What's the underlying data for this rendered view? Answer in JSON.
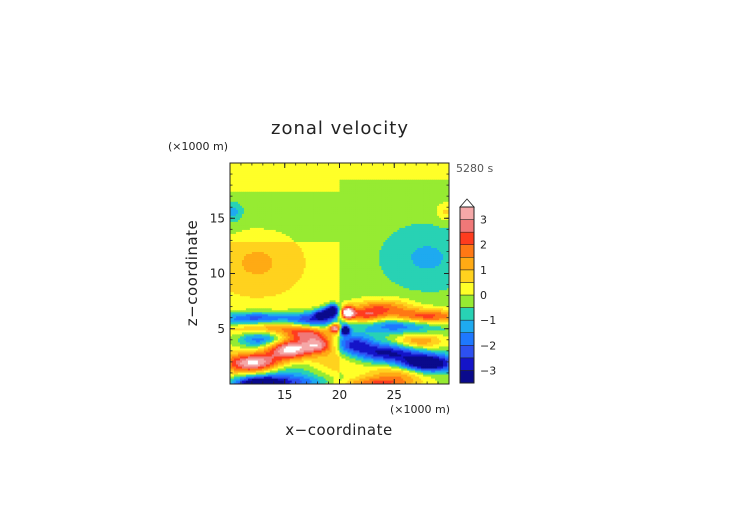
{
  "chart_data": {
    "type": "heatmap",
    "title": "zonal velocity",
    "time_label": "5280 s",
    "xlabel": "x−coordinate",
    "ylabel": "z−coordinate",
    "x_unit": "(×1000 m)",
    "y_unit": "(×1000 m)",
    "xlim": [
      10,
      30
    ],
    "ylim": [
      0,
      20
    ],
    "x_ticks": [
      {
        "value": 15,
        "label": "15"
      },
      {
        "value": 20,
        "label": "20"
      },
      {
        "value": 25,
        "label": "25"
      }
    ],
    "y_ticks": [
      {
        "value": 5,
        "label": "5"
      },
      {
        "value": 10,
        "label": "10"
      },
      {
        "value": 15,
        "label": "15"
      }
    ],
    "colorbar": {
      "vmin": -3.5,
      "vmax": 3.5,
      "extend": "max",
      "ticks": [
        {
          "value": 3,
          "label": "3"
        },
        {
          "value": 2,
          "label": "2"
        },
        {
          "value": 1,
          "label": "1"
        },
        {
          "value": 0,
          "label": "0"
        },
        {
          "value": -1,
          "label": "−1"
        },
        {
          "value": -2,
          "label": "−2"
        },
        {
          "value": -3,
          "label": "−3"
        }
      ],
      "levels": [
        {
          "lo": -3.5,
          "hi": -3.0,
          "color": "#0a0a8c"
        },
        {
          "lo": -3.0,
          "hi": -2.5,
          "color": "#1414c8"
        },
        {
          "lo": -2.5,
          "hi": -2.0,
          "color": "#2d50f0"
        },
        {
          "lo": -2.0,
          "hi": -1.5,
          "color": "#1e78ff"
        },
        {
          "lo": -1.5,
          "hi": -1.0,
          "color": "#1eaaf0"
        },
        {
          "lo": -1.0,
          "hi": -0.5,
          "color": "#28d2b4"
        },
        {
          "lo": -0.5,
          "hi": 0.0,
          "color": "#96eb32"
        },
        {
          "lo": 0.0,
          "hi": 0.5,
          "color": "#ffff28"
        },
        {
          "lo": 0.5,
          "hi": 1.0,
          "color": "#ffd21e"
        },
        {
          "lo": 1.0,
          "hi": 1.5,
          "color": "#ffaa14"
        },
        {
          "lo": 1.5,
          "hi": 2.0,
          "color": "#ff7814"
        },
        {
          "lo": 2.0,
          "hi": 2.5,
          "color": "#ff3c1e"
        },
        {
          "lo": 2.5,
          "hi": 3.0,
          "color": "#f07878"
        },
        {
          "lo": 3.0,
          "hi": 3.5,
          "color": "#f5a8a8"
        }
      ],
      "over_color": "#ffffff"
    },
    "field_features": [
      {
        "x": 12.6,
        "z": 0.1,
        "sx": 1.6,
        "sz": 0.45,
        "amp": -4.2
      },
      {
        "x": 12.3,
        "z": 1.9,
        "sx": 1.8,
        "sz": 0.6,
        "amp": 4.0
      },
      {
        "x": 14.5,
        "z": 1.3,
        "sx": 2.2,
        "sz": 0.7,
        "amp": -1.6
      },
      {
        "x": 15.4,
        "z": 3.2,
        "sx": 1.4,
        "sz": 0.6,
        "amp": 3.6
      },
      {
        "x": 12.8,
        "z": 4.1,
        "sx": 1.5,
        "sz": 0.55,
        "amp": -2.2
      },
      {
        "x": 13.8,
        "z": 5.3,
        "sx": 2.6,
        "sz": 0.5,
        "amp": 2.0
      },
      {
        "x": 12.5,
        "z": 5.9,
        "sx": 2.5,
        "sz": 0.45,
        "amp": -3.1
      },
      {
        "x": 17.6,
        "z": 5.8,
        "sx": 1.6,
        "sz": 0.5,
        "amp": -2.7
      },
      {
        "x": 17.0,
        "z": 4.6,
        "sx": 1.3,
        "sz": 0.45,
        "amp": 2.1
      },
      {
        "x": 18.1,
        "z": 3.6,
        "sx": 1.0,
        "sz": 0.5,
        "amp": 2.6
      },
      {
        "x": 18.4,
        "z": 6.4,
        "sx": 0.55,
        "sz": 0.35,
        "amp": -2.4
      },
      {
        "x": 19.4,
        "z": 6.7,
        "sx": 0.45,
        "sz": 0.38,
        "amp": -4.6
      },
      {
        "x": 19.6,
        "z": 5.1,
        "sx": 0.35,
        "sz": 0.28,
        "amp": 3.7
      },
      {
        "x": 20.5,
        "z": 4.9,
        "sx": 0.3,
        "sz": 0.28,
        "amp": -4.5
      },
      {
        "x": 20.7,
        "z": 6.5,
        "sx": 0.45,
        "sz": 0.4,
        "amp": 4.4
      },
      {
        "x": 22.3,
        "z": 6.2,
        "sx": 1.2,
        "sz": 0.5,
        "amp": 2.3
      },
      {
        "x": 24.0,
        "z": 7.0,
        "sx": 1.8,
        "sz": 0.55,
        "amp": 1.9
      },
      {
        "x": 27.8,
        "z": 6.1,
        "sx": 2.4,
        "sz": 0.5,
        "amp": 2.9
      },
      {
        "x": 25.5,
        "z": 5.4,
        "sx": 2.8,
        "sz": 0.55,
        "amp": -2.0
      },
      {
        "x": 21.3,
        "z": 3.7,
        "sx": 1.2,
        "sz": 0.55,
        "amp": -2.2
      },
      {
        "x": 24.3,
        "z": 2.9,
        "sx": 2.3,
        "sz": 0.6,
        "amp": -2.9
      },
      {
        "x": 27.2,
        "z": 3.9,
        "sx": 1.6,
        "sz": 0.55,
        "amp": 1.9
      },
      {
        "x": 28.0,
        "z": 1.9,
        "sx": 1.7,
        "sz": 0.55,
        "amp": -4.1
      },
      {
        "x": 25.3,
        "z": 1.0,
        "sx": 2.0,
        "sz": 0.55,
        "amp": 1.6
      },
      {
        "x": 23.5,
        "z": 0.1,
        "sx": 2.4,
        "sz": 0.4,
        "amp": 2.1
      },
      {
        "x": 16.5,
        "z": 0.2,
        "sx": 2.2,
        "sz": 0.45,
        "amp": -1.8
      },
      {
        "x": 20.0,
        "z": 2.2,
        "sx": 1.8,
        "sz": 0.8,
        "amp": 0.8
      },
      {
        "x": 12.5,
        "z": 11.0,
        "sx": 2.8,
        "sz": 2.0,
        "amp": 0.85
      },
      {
        "x": 28.0,
        "z": 11.5,
        "sx": 2.8,
        "sz": 2.0,
        "amp": -0.85
      },
      {
        "x": 10.3,
        "z": 15.6,
        "sx": 0.6,
        "sz": 0.6,
        "amp": -1.0
      },
      {
        "x": 29.7,
        "z": 15.6,
        "sx": 0.6,
        "sz": 0.6,
        "amp": 0.9
      }
    ],
    "left_background": [
      {
        "z0": 0,
        "z1": 13,
        "value": 0.25
      },
      {
        "z0": 13,
        "z1": 17.5,
        "value": -0.25
      },
      {
        "z0": 17.5,
        "z1": 20,
        "value": 0.25
      }
    ],
    "right_background": [
      {
        "z0": 0,
        "z1": 18.5,
        "value": -0.25
      },
      {
        "z0": 18.5,
        "z1": 20,
        "value": 0.25
      }
    ]
  }
}
